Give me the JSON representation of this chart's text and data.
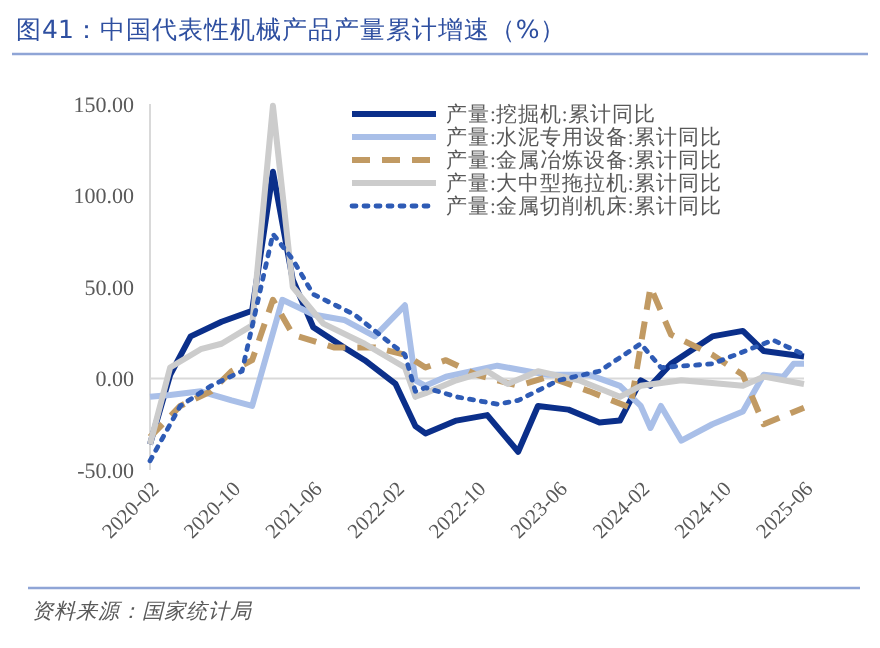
{
  "chart_data": {
    "type": "line",
    "title": "图41：中国代表性机械产品产量累计增速（%）",
    "annotations": [
      "资料来源：国家统计局"
    ],
    "legend": "top right",
    "xlim": [
      "2020-02",
      "2025-06"
    ],
    "xticks": [
      "2020-02",
      "2020-10",
      "2021-06",
      "2022-02",
      "2022-10",
      "2023-06",
      "2024-02",
      "2024-10",
      "2025-06"
    ],
    "ylim": [
      -50,
      150
    ],
    "yticks": [
      {
        "value": -50,
        "label": "-50.00"
      },
      {
        "value": 0,
        "label": "0.00"
      },
      {
        "value": 50,
        "label": "50.00"
      },
      {
        "value": 100,
        "label": "100.00"
      },
      {
        "value": 150,
        "label": "150.00"
      }
    ],
    "series": [
      {
        "name": "产量:挖掘机:累计同比",
        "color": "#0b2f8a",
        "line_style": "solid",
        "x": [
          "2020-02",
          "2020-04",
          "2020-06",
          "2020-09",
          "2020-12",
          "2021-02",
          "2021-04",
          "2021-06",
          "2021-09",
          "2021-11",
          "2022-02",
          "2022-04",
          "2022-05",
          "2022-08",
          "2022-11",
          "2023-02",
          "2023-04",
          "2023-07",
          "2023-10",
          "2023-12",
          "2024-02",
          "2024-03",
          "2024-05",
          "2024-09",
          "2024-12",
          "2025-02",
          "2025-06"
        ],
        "values": [
          -36,
          2,
          23,
          31,
          37,
          113,
          54,
          28,
          17,
          10,
          -3,
          -26,
          -30,
          -23,
          -20,
          -40,
          -15,
          -17,
          -24,
          -23,
          -1,
          -4,
          8,
          23,
          26,
          15,
          12
        ]
      },
      {
        "name": "产量:水泥专用设备:累计同比",
        "color": "#a9bfe8",
        "line_style": "solid",
        "x": [
          "2020-02",
          "2020-04",
          "2020-07",
          "2020-10",
          "2020-12",
          "2021-03",
          "2021-06",
          "2021-09",
          "2021-12",
          "2022-03",
          "2022-04",
          "2022-05",
          "2022-07",
          "2022-12",
          "2023-05",
          "2023-09",
          "2023-12",
          "2024-02",
          "2024-03",
          "2024-04",
          "2024-06",
          "2024-09",
          "2024-12",
          "2025-02",
          "2025-04",
          "2025-05",
          "2025-06"
        ],
        "values": [
          -10,
          -9,
          -7,
          -12,
          -15,
          43,
          35,
          32,
          23,
          40,
          -1,
          -4,
          1,
          7,
          2,
          2,
          -4,
          -15,
          -27,
          -15,
          -34,
          -25,
          -18,
          2,
          1,
          8,
          8
        ]
      },
      {
        "name": "产量:金属冶炼设备:累计同比",
        "color": "#c19a63",
        "line_style": "dashed",
        "x": [
          "2020-02",
          "2020-05",
          "2020-08",
          "2020-10",
          "2020-12",
          "2021-02",
          "2021-04",
          "2021-08",
          "2021-12",
          "2022-03",
          "2022-05",
          "2022-07",
          "2022-10",
          "2023-02",
          "2023-05",
          "2023-09",
          "2024-01",
          "2024-03",
          "2024-05",
          "2024-09",
          "2024-12",
          "2025-02",
          "2025-06"
        ],
        "values": [
          -32,
          -15,
          -7,
          4,
          10,
          43,
          24,
          17,
          17,
          13,
          6,
          10,
          2,
          -4,
          1,
          -7,
          -16,
          50,
          24,
          13,
          2,
          -25,
          -16
        ]
      },
      {
        "name": "产量:大中型拖拉机:累计同比",
        "color": "#cccccc",
        "line_style": "solid",
        "x": [
          "2020-02",
          "2020-04",
          "2020-07",
          "2020-09",
          "2020-12",
          "2021-02",
          "2021-04",
          "2021-07",
          "2021-11",
          "2022-03",
          "2022-04",
          "2022-05",
          "2022-08",
          "2022-11",
          "2023-01",
          "2023-04",
          "2023-08",
          "2023-12",
          "2024-02",
          "2024-06",
          "2024-12",
          "2025-02",
          "2025-06"
        ],
        "values": [
          -36,
          6,
          16,
          19,
          29,
          149,
          50,
          30,
          19,
          6,
          -10,
          -8,
          -1,
          4,
          -3,
          4,
          -1,
          -10,
          -4,
          -1,
          -4,
          1,
          -3
        ]
      },
      {
        "name": "产量:金属切削机床:累计同比",
        "color": "#2e5bb5",
        "line_style": "dotted",
        "x": [
          "2020-02",
          "2020-05",
          "2020-08",
          "2020-11",
          "2021-02",
          "2021-04",
          "2021-06",
          "2021-10",
          "2022-03",
          "2022-04",
          "2022-05",
          "2022-08",
          "2022-12",
          "2023-02",
          "2023-06",
          "2023-10",
          "2024-02",
          "2024-04",
          "2024-09",
          "2025-03",
          "2025-06"
        ],
        "values": [
          -45,
          -15,
          -4,
          4,
          79,
          65,
          46,
          35,
          13,
          -7,
          -5,
          -10,
          -14,
          -12,
          -1,
          4,
          19,
          6,
          8,
          21,
          13
        ]
      }
    ]
  }
}
